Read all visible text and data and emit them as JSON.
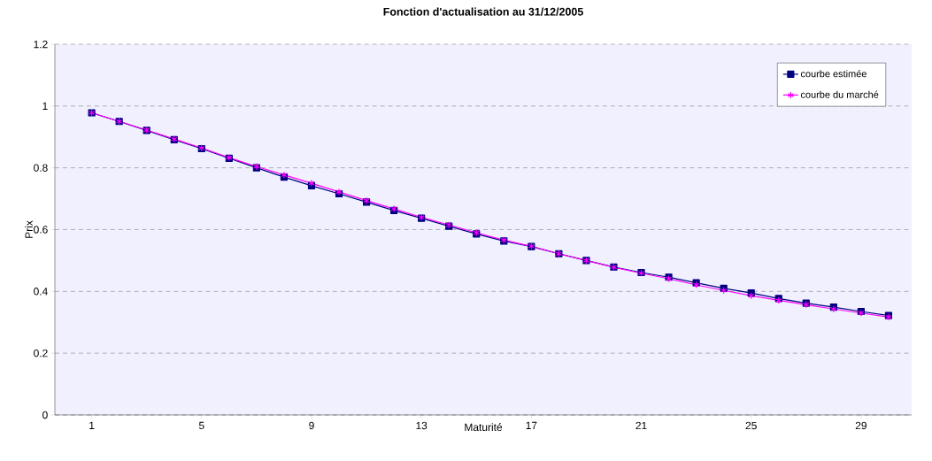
{
  "chart_data": {
    "type": "line",
    "title": "Fonction d'actualisation au 31/12/2005",
    "xlabel": "Maturité",
    "ylabel": "Prix",
    "categories": [
      "1",
      null,
      null,
      null,
      "5",
      null,
      null,
      null,
      "9",
      null,
      null,
      null,
      "13",
      null,
      null,
      null,
      "17",
      null,
      null,
      null,
      "21",
      null,
      null,
      null,
      "25",
      null,
      null,
      null,
      "29",
      null
    ],
    "series": [
      {
        "name": "courbe estimée",
        "color": "#000080",
        "marker": "square",
        "values": [
          0.978,
          0.95,
          0.921,
          0.891,
          0.862,
          0.831,
          0.8,
          0.77,
          0.742,
          0.716,
          0.689,
          0.662,
          0.637,
          0.611,
          0.586,
          0.563,
          0.545,
          0.522,
          0.5,
          0.479,
          0.461,
          0.446,
          0.428,
          0.41,
          0.395,
          0.377,
          0.362,
          0.349,
          0.335,
          0.322
        ]
      },
      {
        "name": "courbe du marché",
        "color": "#ff00ff",
        "marker": "cross",
        "values": [
          0.978,
          0.95,
          0.922,
          0.893,
          0.864,
          0.833,
          0.804,
          0.777,
          0.75,
          0.722,
          0.694,
          0.667,
          0.64,
          0.615,
          0.59,
          0.566,
          0.546,
          0.522,
          0.5,
          0.478,
          0.459,
          0.441,
          0.421,
          0.403,
          0.386,
          0.371,
          0.357,
          0.343,
          0.33,
          0.317
        ]
      }
    ],
    "ylim": [
      0,
      1.2
    ],
    "yticks": [
      0,
      0.2,
      0.4,
      0.6,
      0.8,
      1,
      1.2
    ],
    "grid": "y",
    "legend": "top right",
    "line_style": "solid"
  }
}
